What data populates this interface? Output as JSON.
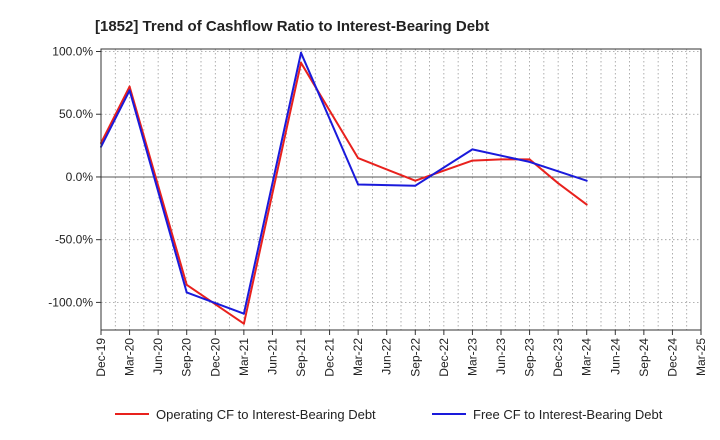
{
  "chart_data": {
    "type": "line",
    "title": "[1852]  Trend of Cashflow Ratio to Interest-Bearing Debt",
    "xlabel": "",
    "ylabel": "",
    "x": [
      "Dec-19",
      "Mar-20",
      "Jun-20",
      "Sep-20",
      "Dec-20",
      "Mar-21",
      "Jun-21",
      "Sep-21",
      "Dec-21",
      "Mar-22",
      "Jun-22",
      "Sep-22",
      "Dec-22",
      "Mar-23",
      "Jun-23",
      "Sep-23",
      "Dec-23",
      "Mar-24",
      "Jun-24",
      "Sep-24",
      "Dec-24",
      "Mar-25"
    ],
    "ylim": [
      -122,
      102
    ],
    "yticks": [
      100,
      50,
      0,
      -50,
      -100
    ],
    "ytick_labels": [
      "100.0%",
      "50.0%",
      "0.0%",
      "-50.0%",
      "-100.0%"
    ],
    "grid": true,
    "legend_position": "bottom",
    "series": [
      {
        "name": "Operating CF to Interest-Bearing Debt",
        "color": "#e8211d",
        "values": [
          27,
          72,
          null,
          -86,
          null,
          -117,
          null,
          91,
          null,
          15,
          null,
          -3,
          null,
          13,
          14,
          14,
          -5,
          -22,
          null,
          null,
          null,
          null
        ]
      },
      {
        "name": "Free CF to Interest-Bearing Debt",
        "color": "#1a1adb",
        "values": [
          24,
          69,
          null,
          -92,
          null,
          -109,
          null,
          99,
          null,
          -6,
          null,
          -7,
          null,
          22,
          null,
          12,
          null,
          -3,
          null,
          null,
          null,
          null
        ]
      }
    ],
    "zero_line": true
  }
}
